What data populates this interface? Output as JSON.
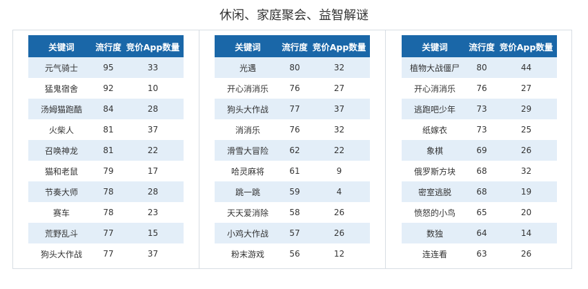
{
  "title": "休闲、家庭聚会、益智解谜",
  "colors": {
    "header_bg": "#1a67a8",
    "row_alt_bg": "#e3eef8",
    "border": "#d7dde3"
  },
  "tables": [
    {
      "headers": [
        "关键词",
        "流行度",
        "竞价App数量"
      ],
      "rows": [
        [
          "元气骑士",
          "95",
          "33"
        ],
        [
          "猛鬼宿舍",
          "92",
          "10"
        ],
        [
          "汤姆猫跑酷",
          "84",
          "28"
        ],
        [
          "火柴人",
          "81",
          "37"
        ],
        [
          "召唤神龙",
          "81",
          "22"
        ],
        [
          "猫和老鼠",
          "79",
          "17"
        ],
        [
          "节奏大师",
          "78",
          "28"
        ],
        [
          "赛车",
          "78",
          "23"
        ],
        [
          "荒野乱斗",
          "77",
          "15"
        ],
        [
          "狗头大作战",
          "77",
          "37"
        ]
      ]
    },
    {
      "headers": [
        "关键词",
        "流行度",
        "竞价App数量"
      ],
      "rows": [
        [
          "光遇",
          "80",
          "32"
        ],
        [
          "开心消消乐",
          "76",
          "27"
        ],
        [
          "狗头大作战",
          "77",
          "37"
        ],
        [
          "消消乐",
          "76",
          "32"
        ],
        [
          "滑雪大冒险",
          "62",
          "22"
        ],
        [
          "哈灵麻将",
          "61",
          "9"
        ],
        [
          "跳一跳",
          "59",
          "4"
        ],
        [
          "天天爱消除",
          "58",
          "26"
        ],
        [
          "小鸡大作战",
          "57",
          "26"
        ],
        [
          "粉末游戏",
          "56",
          "12"
        ]
      ]
    },
    {
      "headers": [
        "关键词",
        "流行度",
        "竞价App数量"
      ],
      "rows": [
        [
          "植物大战僵尸",
          "80",
          "44"
        ],
        [
          "开心消消乐",
          "76",
          "27"
        ],
        [
          "逃跑吧少年",
          "73",
          "29"
        ],
        [
          "纸嫁衣",
          "73",
          "25"
        ],
        [
          "象棋",
          "69",
          "26"
        ],
        [
          "俄罗斯方块",
          "68",
          "32"
        ],
        [
          "密室逃脱",
          "68",
          "19"
        ],
        [
          "愤怒的小鸟",
          "65",
          "20"
        ],
        [
          "数独",
          "64",
          "14"
        ],
        [
          "连连看",
          "63",
          "26"
        ]
      ]
    }
  ]
}
